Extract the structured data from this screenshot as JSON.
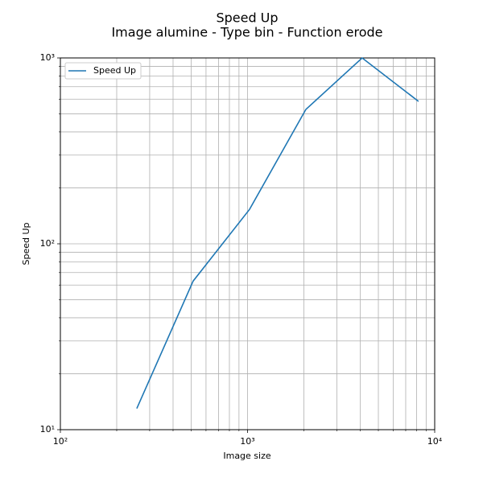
{
  "chart_data": {
    "type": "line",
    "title": "Speed Up",
    "subtitle": "Image alumine - Type bin - Function erode",
    "x_label": "Image size",
    "y_label": "Speed Up",
    "x": [
      256,
      512,
      1024,
      2048,
      4096,
      8192
    ],
    "series": [
      {
        "name": "Speed Up",
        "color": "#1f77b4",
        "values": [
          13,
          63,
          153,
          528,
          1000,
          584
        ]
      }
    ],
    "xscale": "log",
    "yscale": "log",
    "xlim": [
      100,
      10000
    ],
    "ylim": [
      10,
      1000
    ],
    "xticks": [
      {
        "value": 100,
        "label": "10²"
      },
      {
        "value": 1000,
        "label": "10³"
      },
      {
        "value": 10000,
        "label": "10⁴"
      }
    ],
    "yticks": [
      {
        "value": 10,
        "label": "10¹"
      },
      {
        "value": 100,
        "label": "10²"
      },
      {
        "value": 1000,
        "label": "10³"
      }
    ],
    "x_minor_ticks": [
      200,
      300,
      400,
      500,
      600,
      700,
      800,
      900,
      2000,
      3000,
      4000,
      5000,
      6000,
      7000,
      8000,
      9000
    ],
    "y_minor_ticks": [
      20,
      30,
      40,
      50,
      60,
      70,
      80,
      90,
      200,
      300,
      400,
      500,
      600,
      700,
      800,
      900
    ],
    "grid": true,
    "legend": "upper left"
  }
}
